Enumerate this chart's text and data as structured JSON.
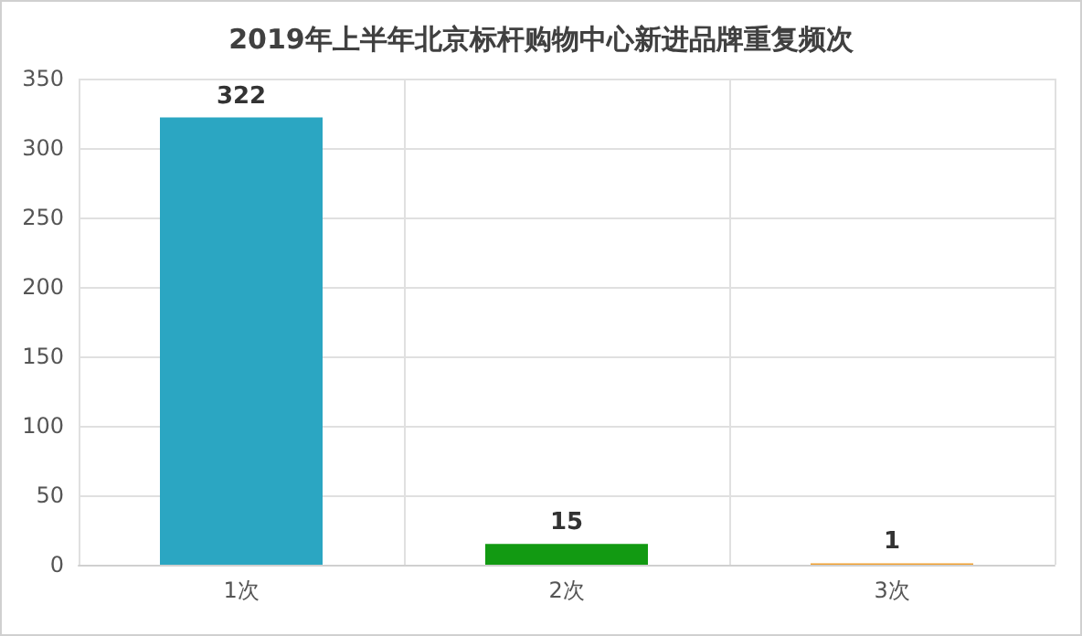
{
  "chart_data": {
    "type": "bar",
    "title": "2019年上半年北京标杆购物中心新进品牌重复频次",
    "categories": [
      "1次",
      "2次",
      "3次"
    ],
    "values": [
      322,
      15,
      1
    ],
    "colors": [
      "#2ba6c2",
      "#129a12",
      "#f0a030"
    ],
    "ylim": [
      0,
      350
    ],
    "yticks": [
      0,
      50,
      100,
      150,
      200,
      250,
      300,
      350
    ],
    "grid": true,
    "data_labels": true
  }
}
